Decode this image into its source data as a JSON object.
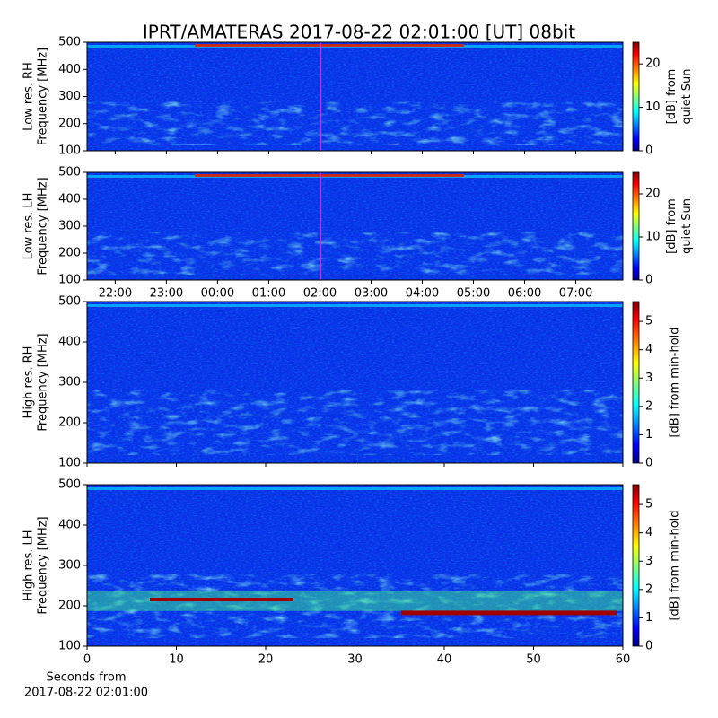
{
  "title": "IPRT/AMATERAS 2017-08-22 02:01:00 [UT]   08bit",
  "chart_data": [
    {
      "type": "spectrogram",
      "ylabel": [
        "Low res. RH",
        "Frequency [MHz]"
      ],
      "ylim": [
        100,
        500
      ],
      "yticks": [
        100,
        200,
        300,
        400,
        500
      ],
      "xlim": [
        21.45,
        31.92
      ],
      "sharex": 1,
      "cursor_x": 26.017,
      "cursor_color": "#e020e0",
      "clabel": [
        "[dB] from",
        "quiet Sun"
      ],
      "clim": [
        0,
        25
      ],
      "cticks": [
        0,
        10,
        20
      ]
    },
    {
      "type": "spectrogram",
      "ylabel": [
        "Low res. LH",
        "Frequency [MHz]"
      ],
      "ylim": [
        100,
        500
      ],
      "yticks": [
        100,
        200,
        300,
        400,
        500
      ],
      "xlim": [
        21.45,
        31.92
      ],
      "xticks": [
        {
          "value": 22,
          "label": "22:00"
        },
        {
          "value": 23,
          "label": "23:00"
        },
        {
          "value": 24,
          "label": "00:00"
        },
        {
          "value": 25,
          "label": "01:00"
        },
        {
          "value": 26,
          "label": "02:00"
        },
        {
          "value": 27,
          "label": "03:00"
        },
        {
          "value": 28,
          "label": "04:00"
        },
        {
          "value": 29,
          "label": "05:00"
        },
        {
          "value": 30,
          "label": "06:00"
        },
        {
          "value": 31,
          "label": "07:00"
        }
      ],
      "cursor_x": 26.017,
      "cursor_color": "#e020e0",
      "clabel": [
        "[dB] from",
        "quiet Sun"
      ],
      "clim": [
        0,
        25
      ],
      "cticks": [
        0,
        10,
        20
      ]
    },
    {
      "type": "spectrogram",
      "ylabel": [
        "High res. RH",
        "Frequency [MHz]"
      ],
      "ylim": [
        100,
        500
      ],
      "yticks": [
        100,
        200,
        300,
        400,
        500
      ],
      "xlim": [
        0,
        60
      ],
      "sharex": 3,
      "clabel": [
        "[dB] from min-hold"
      ],
      "clim": [
        0,
        5.7
      ],
      "cticks": [
        0,
        1,
        2,
        3,
        4,
        5
      ]
    },
    {
      "type": "spectrogram",
      "ylabel": [
        "High res. LH",
        "Frequency [MHz]"
      ],
      "ylim": [
        100,
        500
      ],
      "yticks": [
        100,
        200,
        300,
        400,
        500
      ],
      "xlim": [
        0,
        60
      ],
      "xticks": [
        0,
        10,
        20,
        30,
        40,
        50,
        60
      ],
      "xlabel": [
        "Seconds from",
        "2017-08-22 02:01:00"
      ],
      "clabel": [
        "[dB] from min-hold"
      ],
      "clim": [
        0,
        5.7
      ],
      "cticks": [
        0,
        1,
        2,
        3,
        4,
        5
      ]
    }
  ]
}
